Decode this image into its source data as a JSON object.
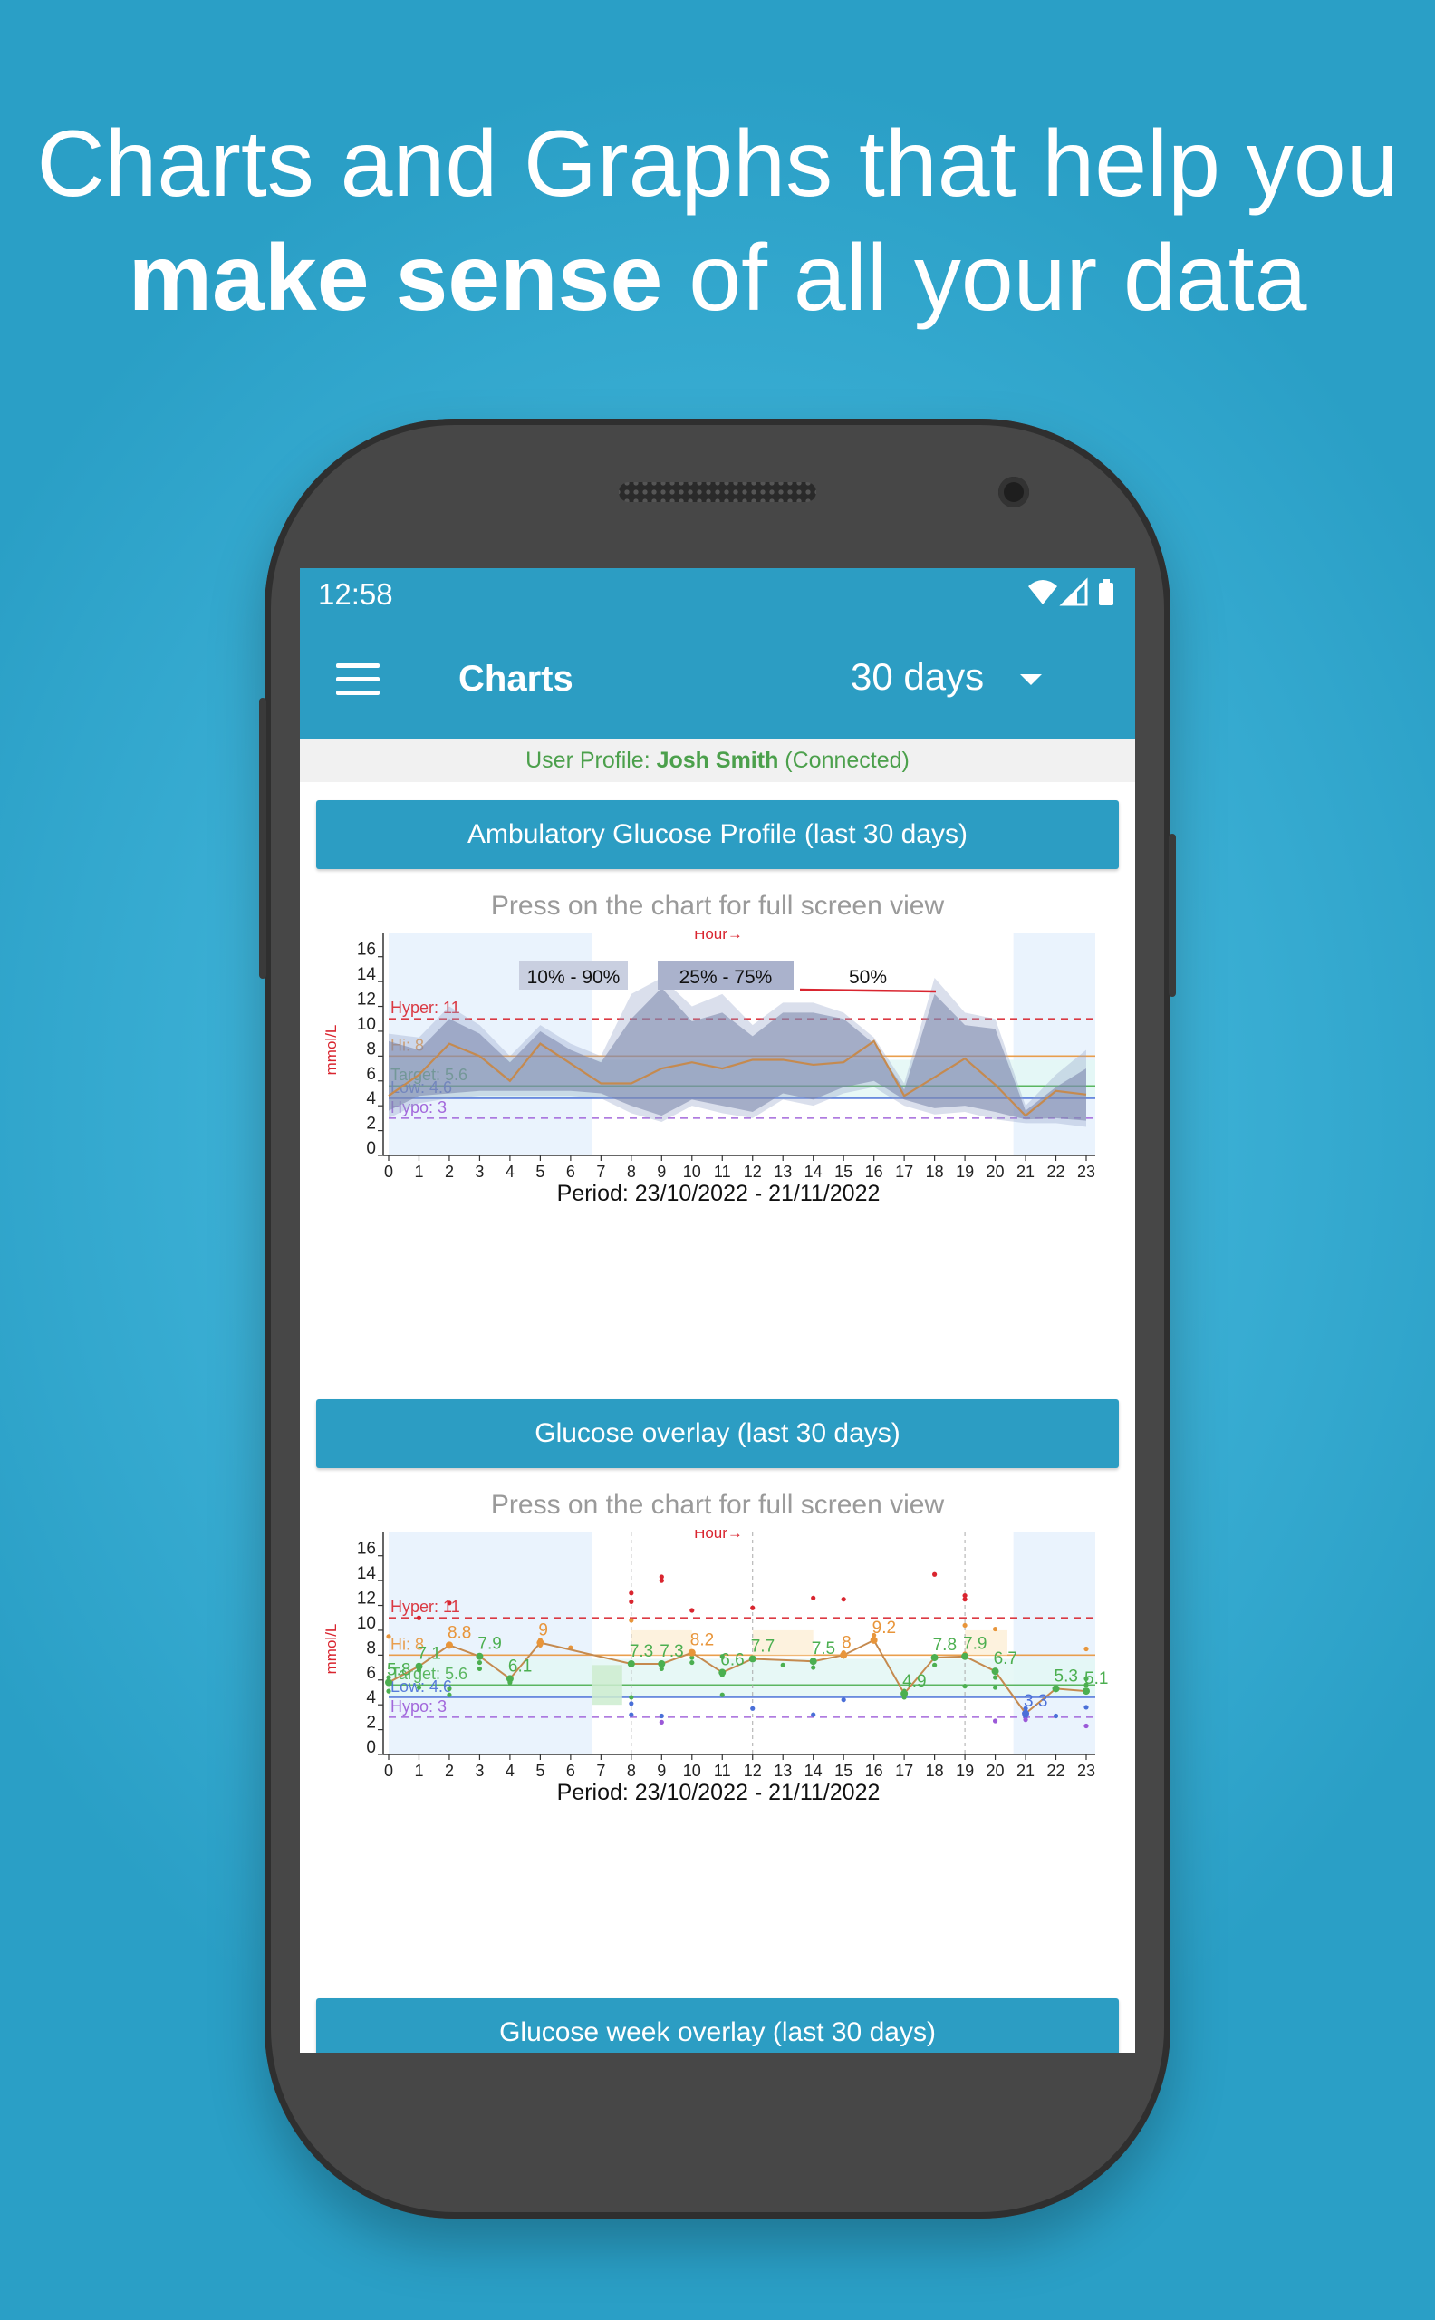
{
  "headline": {
    "line1": "Charts and Graphs that help you",
    "line2_bold": "make sense",
    "line2_rest": " of all your data"
  },
  "status_bar": {
    "time": "12:58",
    "icons": [
      "wifi-icon",
      "signal-icon",
      "battery-icon"
    ]
  },
  "app_bar": {
    "title": "Charts",
    "range": "30 days"
  },
  "profile": {
    "prefix": "User Profile: ",
    "name": "Josh Smith",
    "status": " (Connected)"
  },
  "hint": "Press on the chart for full screen view",
  "sections": [
    {
      "title": "Ambulatory Glucose Profile (last 30 days)"
    },
    {
      "title": "Glucose overlay (last 30 days)"
    },
    {
      "title": "Glucose week overlay (last 30 days)"
    }
  ],
  "colors": {
    "primary": "#2c9dc3",
    "hyper": "#d9252f",
    "hi": "#e8953a",
    "target": "#4caf50",
    "low": "#4a6fd8",
    "hypo": "#9b59d8"
  },
  "chart_data": [
    {
      "type": "area",
      "title": "Ambulatory Glucose Profile (last 30 days)",
      "xlabel": "Hour",
      "ylabel": "mmol/L",
      "period": "Period: 23/10/2022 - 21/11/2022",
      "x": [
        0,
        1,
        2,
        3,
        4,
        5,
        6,
        7,
        8,
        9,
        10,
        11,
        12,
        13,
        14,
        15,
        16,
        17,
        18,
        19,
        20,
        21,
        22,
        23
      ],
      "xlim": [
        0,
        23
      ],
      "ylim": [
        0,
        17
      ],
      "yticks": [
        0,
        2,
        4,
        6,
        8,
        10,
        12,
        14,
        16
      ],
      "legend": [
        "10% - 90%",
        "25% - 75%",
        "50%"
      ],
      "thresholds": [
        {
          "label": "Hyper: 11",
          "value": 11
        },
        {
          "label": "Hi: 8",
          "value": 8
        },
        {
          "label": "Target: 5.6",
          "value": 5.6
        },
        {
          "label": "Low: 4.6",
          "value": 4.6
        },
        {
          "label": "Hypo: 3",
          "value": 3
        }
      ],
      "series": [
        {
          "name": "50%",
          "values": [
            4.8,
            6.5,
            9,
            8,
            6,
            9,
            7.4,
            5.8,
            5.8,
            7,
            7.5,
            7,
            7.7,
            7.7,
            7.3,
            7.5,
            9.2,
            4.8,
            6.3,
            7.8,
            5.7,
            3.2,
            5.2,
            4.9
          ]
        },
        {
          "name": "25% - 75%",
          "low": [
            3.6,
            4.8,
            5.0,
            5.2,
            5.2,
            5.2,
            5.2,
            5.0,
            4.0,
            3.2,
            4.5,
            4.0,
            3.5,
            5.0,
            4.5,
            5.5,
            6.0,
            4.5,
            3.8,
            4.0,
            3.5,
            2.9,
            3.0,
            2.8
          ],
          "high": [
            9.2,
            8.5,
            11,
            9.8,
            7.5,
            10,
            8.5,
            7.5,
            11,
            13.5,
            10.8,
            11.5,
            9.6,
            11.5,
            11.5,
            11,
            9.0,
            5.3,
            13,
            10.5,
            10.2,
            3.6,
            5.5,
            7
          ]
        },
        {
          "name": "10% - 90%",
          "low": [
            3.0,
            4.2,
            4.6,
            4.8,
            4.8,
            4.8,
            4.8,
            4.6,
            3.4,
            2.7,
            4.0,
            3.4,
            3.0,
            4.5,
            4.0,
            5.0,
            5.5,
            4.0,
            3.3,
            3.5,
            2.9,
            2.6,
            2.6,
            2.3
          ],
          "high": [
            9.8,
            9.5,
            12,
            10.5,
            8.0,
            10.5,
            9.0,
            8.0,
            13,
            14.3,
            12,
            13,
            10.5,
            12.3,
            12.3,
            11.5,
            9.5,
            5.8,
            14.3,
            11.5,
            11,
            4.0,
            6.5,
            8.5
          ]
        }
      ]
    },
    {
      "type": "scatter",
      "title": "Glucose overlay (last 30 days)",
      "xlabel": "Hour",
      "ylabel": "mmol/L",
      "period": "Period: 23/10/2022 - 21/11/2022",
      "x": [
        0,
        1,
        2,
        3,
        4,
        5,
        6,
        7,
        8,
        9,
        10,
        11,
        12,
        13,
        14,
        15,
        16,
        17,
        18,
        19,
        20,
        21,
        22,
        23
      ],
      "xlim": [
        0,
        23
      ],
      "ylim": [
        0,
        17
      ],
      "yticks": [
        0,
        2,
        4,
        6,
        8,
        10,
        12,
        14,
        16
      ],
      "thresholds": [
        {
          "label": "Hyper: 11",
          "value": 11
        },
        {
          "label": "Hi: 8",
          "value": 8
        },
        {
          "label": "Target: 5.6",
          "value": 5.6
        },
        {
          "label": "Low: 4.6",
          "value": 4.6
        },
        {
          "label": "Hypo: 3",
          "value": 3
        }
      ],
      "series": [
        {
          "name": "average",
          "values": [
            5.8,
            7.1,
            8.8,
            7.9,
            6.1,
            9,
            null,
            null,
            7.3,
            7.3,
            8.2,
            6.6,
            7.7,
            null,
            7.5,
            8,
            9.2,
            4.9,
            7.8,
            7.9,
            6.7,
            3.3,
            5.3,
            5.1
          ],
          "labels": [
            "5.8",
            "7.1",
            "8.8",
            "7.9",
            "6.1",
            "9",
            "",
            "",
            "7.3",
            "7.3",
            "8.2",
            "6.6",
            "7.7",
            "",
            "7.5",
            "8",
            "9.2",
            "4.9",
            "7.8",
            "7.9",
            "6.7",
            "3.3",
            "5.3",
            "5.1"
          ]
        }
      ],
      "points": [
        [
          0,
          6.2
        ],
        [
          0,
          5.1
        ],
        [
          0,
          9.5
        ],
        [
          1,
          6.8
        ],
        [
          1,
          5.4
        ],
        [
          1,
          11
        ],
        [
          2,
          12.2
        ],
        [
          2,
          5.3
        ],
        [
          2,
          4.8
        ],
        [
          3,
          7.4
        ],
        [
          3,
          6.9
        ],
        [
          4,
          5.8
        ],
        [
          5,
          8.8
        ],
        [
          5,
          9.2
        ],
        [
          6,
          8.6
        ],
        [
          8,
          13
        ],
        [
          8,
          12.3
        ],
        [
          8,
          10.8
        ],
        [
          8,
          4.1
        ],
        [
          8,
          3.2
        ],
        [
          8,
          4.6
        ],
        [
          9,
          14
        ],
        [
          9,
          14.3
        ],
        [
          9,
          6.9
        ],
        [
          9,
          2.6
        ],
        [
          9,
          3.1
        ],
        [
          10,
          7.8
        ],
        [
          10,
          8.2
        ],
        [
          10,
          11.6
        ],
        [
          10,
          7.4
        ],
        [
          11,
          6.4
        ],
        [
          11,
          4.8
        ],
        [
          11,
          7.9
        ],
        [
          12,
          11.8
        ],
        [
          12,
          3.7
        ],
        [
          13,
          7.2
        ],
        [
          14,
          12.6
        ],
        [
          14,
          3.2
        ],
        [
          14,
          7
        ],
        [
          15,
          12.5
        ],
        [
          15,
          4.4
        ],
        [
          15,
          7.9
        ],
        [
          15,
          8.2
        ],
        [
          16,
          9.6
        ],
        [
          17,
          4.6
        ],
        [
          17,
          5.1
        ],
        [
          18,
          14.5
        ],
        [
          18,
          7.2
        ],
        [
          18,
          7.9
        ],
        [
          19,
          12.8
        ],
        [
          19,
          12.5
        ],
        [
          19,
          10.4
        ],
        [
          19,
          5.5
        ],
        [
          19,
          8.1
        ],
        [
          20,
          10.1
        ],
        [
          20,
          6.2
        ],
        [
          20,
          2.7
        ],
        [
          20,
          5.4
        ],
        [
          21,
          3.7
        ],
        [
          21,
          3
        ],
        [
          21,
          3.4
        ],
        [
          21,
          2.8
        ],
        [
          22,
          5.3
        ],
        [
          22,
          3.1
        ],
        [
          23,
          8.5
        ],
        [
          23,
          6.1
        ],
        [
          23,
          5.6
        ],
        [
          23,
          2.3
        ],
        [
          23,
          3.8
        ]
      ]
    }
  ]
}
